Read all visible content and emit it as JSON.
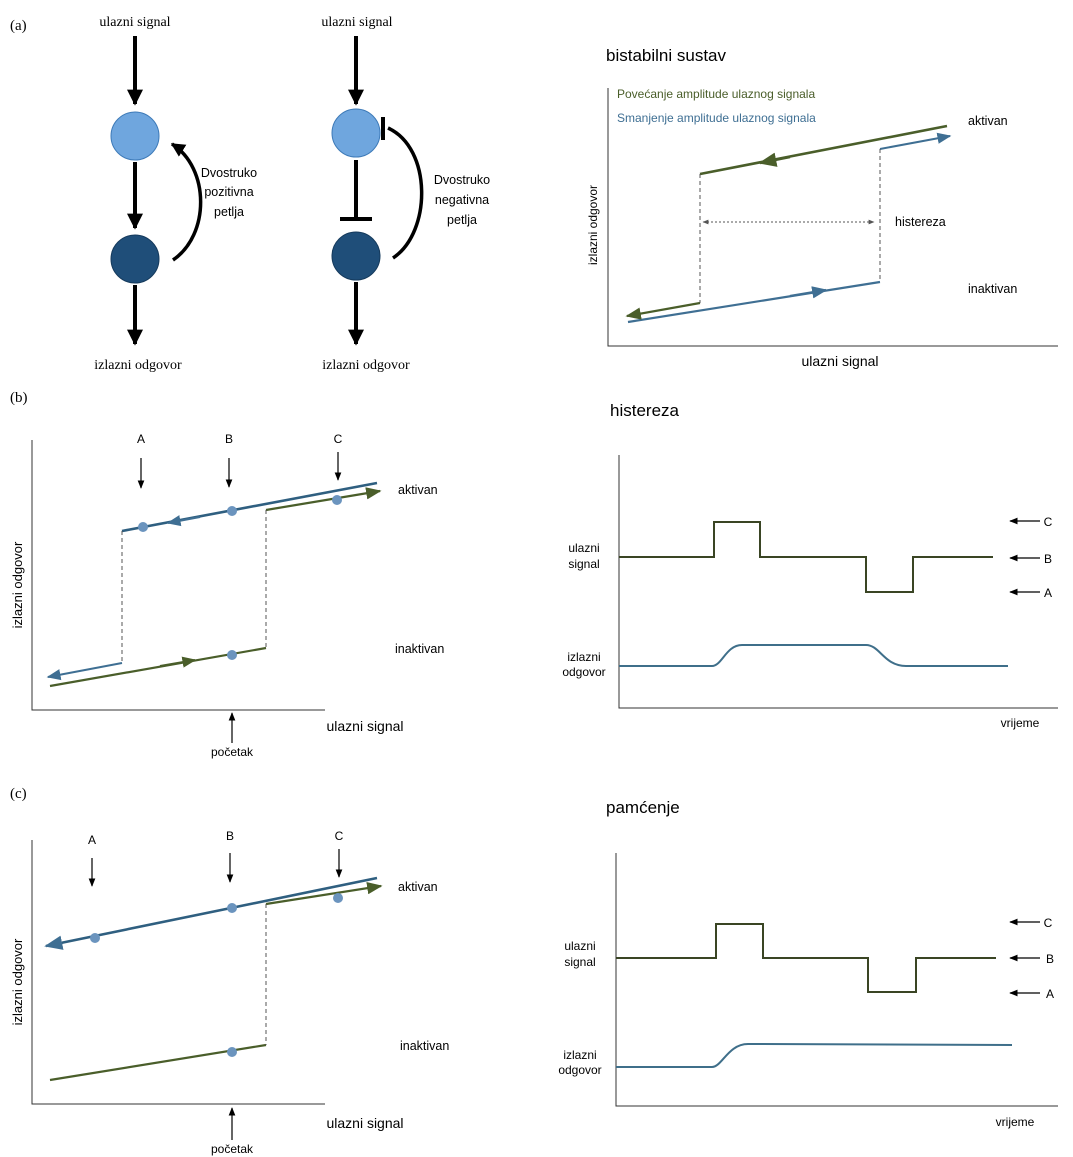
{
  "panel_a": {
    "tag": "(a)",
    "pos_loop": {
      "input": "ulazni signal",
      "output": "izlazni odgovor",
      "loop_label": [
        "Dvostruko",
        "pozitivna",
        "petlja"
      ]
    },
    "neg_loop": {
      "input": "ulazni signal",
      "output": "izlazni odgovor",
      "loop_label": [
        "Dvostruko",
        "negativna",
        "petlja"
      ]
    },
    "bistable": {
      "title": "bistabilni sustav",
      "legend_increase": "Povećanje  amplitude ulaznog signala",
      "legend_decrease": "Smanjenje amplitude ulaznog signala",
      "ylabel": "izlazni odgovor",
      "xlabel": "ulazni signal",
      "active": "aktivan",
      "inactive": "inaktivan",
      "hysteresis": "histereza"
    }
  },
  "panel_b": {
    "tag": "(b)",
    "left": {
      "markers": [
        "A",
        "B",
        "C"
      ],
      "active": "aktivan",
      "inactive": "inaktivan",
      "ylabel": "izlazni odgovor",
      "xlabel": "ulazni signal",
      "start": "početak"
    },
    "right": {
      "title": "histereza",
      "input_label": [
        "ulazni",
        "signal"
      ],
      "output_label": [
        "izlazni",
        "odgovor"
      ],
      "time": "vrijeme",
      "levels": [
        "C",
        "B",
        "A"
      ]
    }
  },
  "panel_c": {
    "tag": "(c)",
    "left": {
      "markers": [
        "A",
        "B",
        "C"
      ],
      "active": "aktivan",
      "inactive": "inaktivan",
      "ylabel": "izlazni odgovor",
      "xlabel": "ulazni signal",
      "start": "početak"
    },
    "right": {
      "title": "pamćenje",
      "input_label": [
        "ulazni",
        "signal"
      ],
      "output_label": [
        "izlazni",
        "odgovor"
      ],
      "time": "vrijeme",
      "levels": [
        "C",
        "B",
        "A"
      ]
    }
  },
  "colors": {
    "node_light": "#6fa6de",
    "node_dark": "#1f4e79",
    "green": "#4a5e2a",
    "blue": "#3f6f93",
    "dot": "#6b94be"
  }
}
